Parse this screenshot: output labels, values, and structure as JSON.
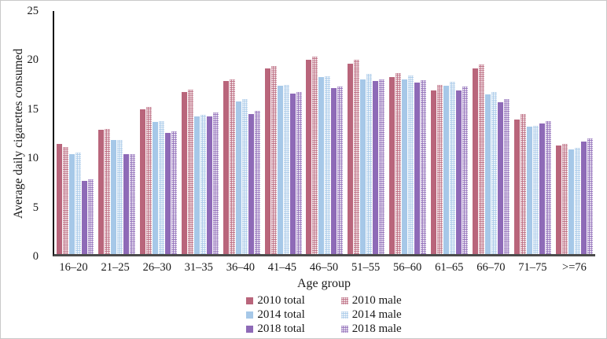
{
  "chart_data": {
    "type": "bar",
    "title": "",
    "xlabel": "Age group",
    "ylabel": "Average daily cigarettes consumed",
    "ylim": [
      0,
      25
    ],
    "yticks": [
      0,
      5,
      10,
      15,
      20,
      25
    ],
    "grid": false,
    "legend_position": "bottom",
    "categories": [
      "16–20",
      "21–25",
      "26–30",
      "31–35",
      "36–40",
      "41–45",
      "46–50",
      "51–55",
      "56–60",
      "61–65",
      "66–70",
      "71–75",
      ">=76"
    ],
    "series": [
      {
        "name": "2010 total",
        "pattern": "solid",
        "color": "#b9657b",
        "values": [
          11.3,
          12.8,
          14.9,
          16.7,
          17.8,
          19.1,
          20.0,
          19.6,
          18.2,
          16.8,
          19.1,
          13.8,
          11.2
        ]
      },
      {
        "name": "2010 male",
        "pattern": "dotted",
        "color": "#b9657b",
        "values": [
          11.0,
          12.9,
          15.1,
          16.9,
          18.0,
          19.3,
          20.3,
          20.0,
          18.6,
          17.4,
          19.5,
          14.4,
          11.3
        ]
      },
      {
        "name": "2014 total",
        "pattern": "solid",
        "color": "#a6c8e8",
        "values": [
          10.3,
          11.7,
          13.6,
          14.2,
          15.7,
          17.3,
          18.2,
          18.0,
          18.0,
          17.3,
          16.4,
          13.1,
          10.8
        ]
      },
      {
        "name": "2014 male",
        "pattern": "dotted",
        "color": "#a6c8e8",
        "values": [
          10.4,
          11.7,
          13.7,
          14.3,
          15.9,
          17.4,
          18.3,
          18.5,
          18.4,
          17.7,
          16.7,
          13.2,
          10.9
        ]
      },
      {
        "name": "2018 total",
        "pattern": "solid",
        "color": "#8e6ab7",
        "values": [
          7.5,
          10.3,
          12.5,
          14.2,
          14.4,
          16.5,
          17.1,
          17.8,
          17.6,
          16.8,
          15.6,
          13.4,
          11.6
        ]
      },
      {
        "name": "2018 male",
        "pattern": "dotted",
        "color": "#8e6ab7",
        "values": [
          7.7,
          10.3,
          12.6,
          14.6,
          14.7,
          16.7,
          17.2,
          18.0,
          17.9,
          17.2,
          15.9,
          13.7,
          11.9
        ]
      }
    ]
  }
}
